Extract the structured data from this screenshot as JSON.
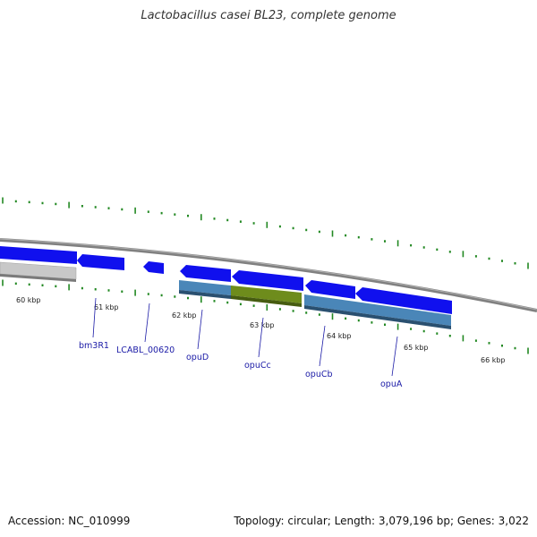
{
  "title": "Lactobacillus casei BL23, complete genome",
  "footer": {
    "accession": "Accession: NC_010999",
    "summary": "Topology: circular; Length: 3,079,196 bp; Genes: 3,022"
  },
  "colors": {
    "backbone": "#808080",
    "gene_blue": "#1010ee",
    "cds_steel": "#4a86b8",
    "cds_olive": "#6e8c1c",
    "cds_grey": "#c8c8c8",
    "tick": "#228822",
    "label": "#1a1aa6"
  },
  "axis": {
    "ticks": [
      {
        "label": "60 kbp"
      },
      {
        "label": "61 kbp"
      },
      {
        "label": "62 kbp"
      },
      {
        "label": "63 kbp"
      },
      {
        "label": "64 kbp"
      },
      {
        "label": "65 kbp"
      },
      {
        "label": "66 kbp"
      }
    ]
  },
  "genes": [
    {
      "name": "bm3R1"
    },
    {
      "name": "LCABL_00620"
    },
    {
      "name": "opuD"
    },
    {
      "name": "opuCc"
    },
    {
      "name": "opuCb"
    },
    {
      "name": "opuA"
    }
  ]
}
